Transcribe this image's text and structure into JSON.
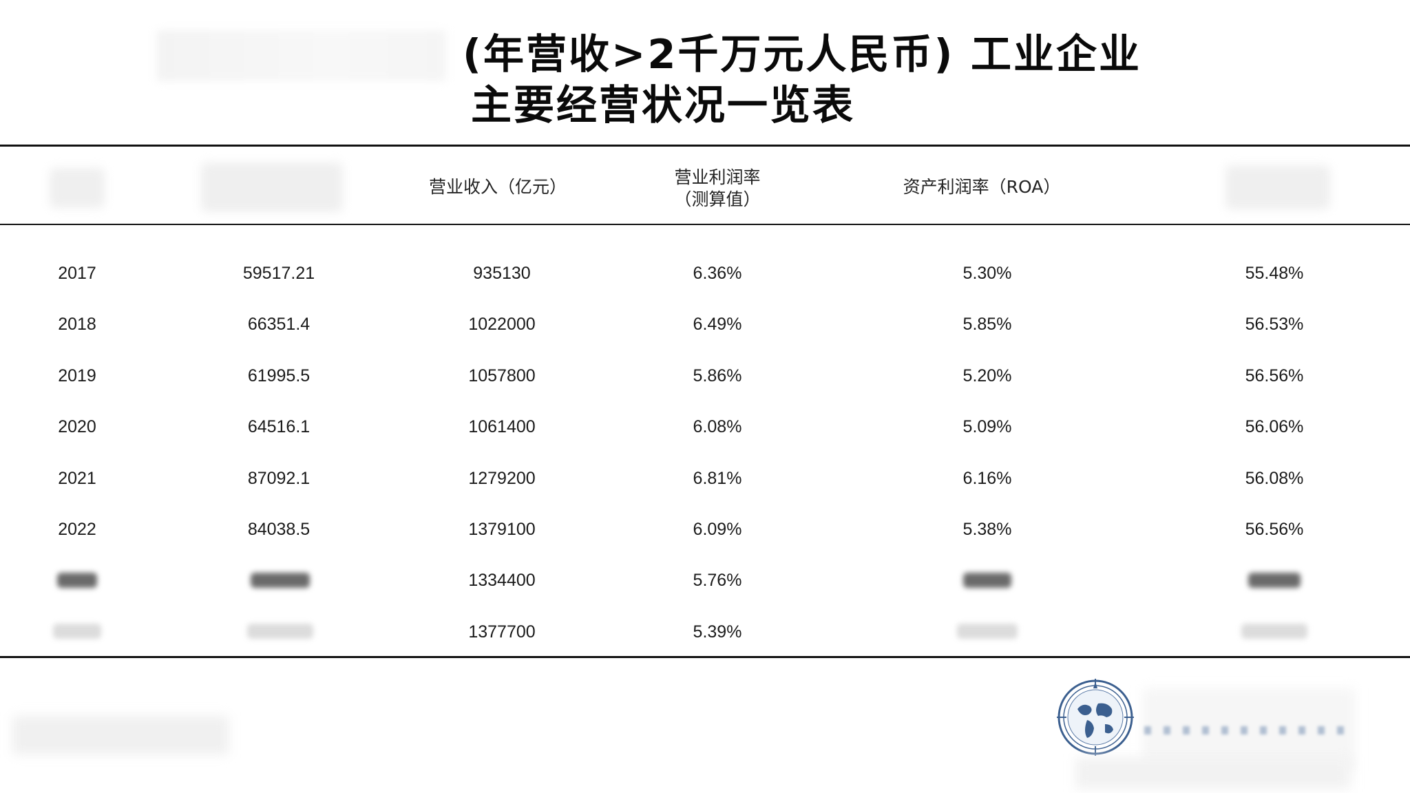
{
  "title": {
    "line1": "(年营收>2千万元人民币) 工业企业",
    "line2": "主要经营状况一览表"
  },
  "table": {
    "headers": {
      "revenue": "营业收入（亿元）",
      "op_margin_line1": "营业利润率",
      "op_margin_line2": "（测算值）",
      "roa": "资产利润率（ROA）"
    },
    "rows": [
      {
        "year": "2017",
        "c2": "59517.21",
        "revenue": "935130",
        "op_margin": "6.36%",
        "roa": "5.30%",
        "c6": "55.48%"
      },
      {
        "year": "2018",
        "c2": "66351.4",
        "revenue": "1022000",
        "op_margin": "6.49%",
        "roa": "5.85%",
        "c6": "56.53%"
      },
      {
        "year": "2019",
        "c2": "61995.5",
        "revenue": "1057800",
        "op_margin": "5.86%",
        "roa": "5.20%",
        "c6": "56.56%"
      },
      {
        "year": "2020",
        "c2": "64516.1",
        "revenue": "1061400",
        "op_margin": "6.08%",
        "roa": "5.09%",
        "c6": "56.06%"
      },
      {
        "year": "2021",
        "c2": "87092.1",
        "revenue": "1279200",
        "op_margin": "6.81%",
        "roa": "6.16%",
        "c6": "56.08%"
      },
      {
        "year": "2022",
        "c2": "84038.5",
        "revenue": "1379100",
        "op_margin": "6.09%",
        "roa": "5.38%",
        "c6": "56.56%"
      },
      {
        "revenue": "1334400",
        "op_margin": "5.76%"
      },
      {
        "revenue": "1377700",
        "op_margin": "5.39%"
      }
    ]
  },
  "logo": {
    "icon": "globe-compass-logo-icon"
  },
  "colors": {
    "text": "#1a1a1a",
    "rule": "#111111",
    "logo_blue": "#3b5f8f"
  }
}
